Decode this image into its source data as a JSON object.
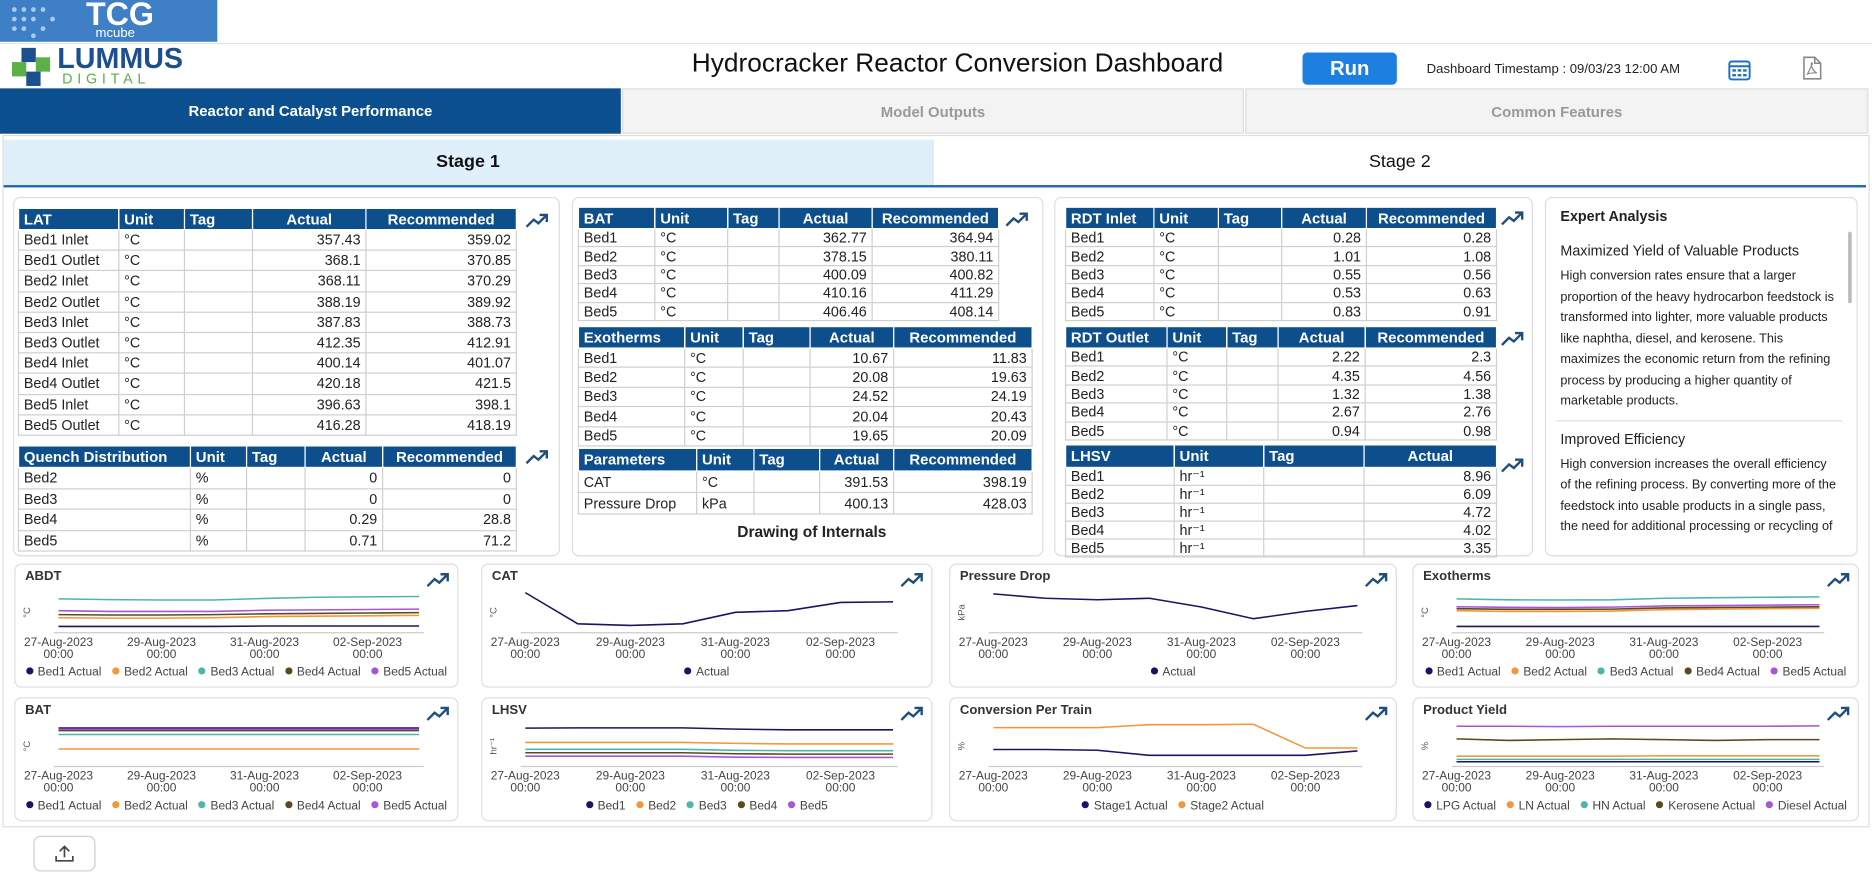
{
  "logos": {
    "tcg": "TCG",
    "tcg_sub": "mcube",
    "lummus": "LUMMUS",
    "lummus_sub": "DIGITAL"
  },
  "header": {
    "title": "Hydrocracker Reactor Conversion Dashboard",
    "run": "Run",
    "timestamp": "Dashboard Timestamp : 09/03/23 12:00 AM"
  },
  "tabs": [
    "Reactor and Catalyst Performance",
    "Model Outputs",
    "Common Features"
  ],
  "stage_tabs": [
    "Stage 1",
    "Stage 2"
  ],
  "tables": [
    {
      "columns": [
        "LAT",
        "Unit",
        "Tag",
        "Actual",
        "Recommended"
      ],
      "rows": [
        [
          "Bed1 Inlet",
          "°C",
          357.43,
          359.02
        ],
        [
          "Bed1 Outlet",
          "°C",
          368.1,
          370.85
        ],
        [
          "Bed2 Inlet",
          "°C",
          368.11,
          370.29
        ],
        [
          "Bed2 Outlet",
          "°C",
          388.19,
          389.92
        ],
        [
          "Bed3 Inlet",
          "°C",
          387.83,
          388.73
        ],
        [
          "Bed3 Outlet",
          "°C",
          412.35,
          412.91
        ],
        [
          "Bed4 Inlet",
          "°C",
          400.14,
          401.07
        ],
        [
          "Bed4 Outlet",
          "°C",
          420.18,
          421.5
        ],
        [
          "Bed5 Inlet",
          "°C",
          396.63,
          398.1
        ],
        [
          "Bed5 Outlet",
          "°C",
          416.28,
          418.19
        ]
      ]
    },
    {
      "columns": [
        "Quench Distribution",
        "Unit",
        "Tag",
        "Actual",
        "Recommended"
      ],
      "rows": [
        [
          "Bed2",
          "%",
          0,
          0
        ],
        [
          "Bed3",
          "%",
          0,
          0
        ],
        [
          "Bed4",
          "%",
          0.29,
          28.8
        ],
        [
          "Bed5",
          "%",
          0.71,
          71.2
        ]
      ]
    },
    {
      "columns": [
        "BAT",
        "Unit",
        "Tag",
        "Actual",
        "Recommended"
      ],
      "rows": [
        [
          "Bed1",
          "°C",
          362.77,
          364.94
        ],
        [
          "Bed2",
          "°C",
          378.15,
          380.11
        ],
        [
          "Bed3",
          "°C",
          400.09,
          400.82
        ],
        [
          "Bed4",
          "°C",
          410.16,
          411.29
        ],
        [
          "Bed5",
          "°C",
          406.46,
          408.14
        ]
      ]
    },
    {
      "columns": [
        "Exotherms",
        "Unit",
        "Tag",
        "Actual",
        "Recommended"
      ],
      "rows": [
        [
          "Bed1",
          "°C",
          10.67,
          11.83
        ],
        [
          "Bed2",
          "°C",
          20.08,
          19.63
        ],
        [
          "Bed3",
          "°C",
          24.52,
          24.19
        ],
        [
          "Bed4",
          "°C",
          20.04,
          20.43
        ],
        [
          "Bed5",
          "°C",
          19.65,
          20.09
        ]
      ]
    },
    {
      "columns": [
        "Parameters",
        "Unit",
        "Tag",
        "Actual",
        "Recommended"
      ],
      "rows": [
        [
          "CAT",
          "°C",
          391.53,
          398.19
        ],
        [
          "Pressure Drop",
          "kPa",
          400.13,
          428.03
        ]
      ]
    },
    {
      "columns": [
        "RDT Inlet",
        "Unit",
        "Tag",
        "Actual",
        "Recommended"
      ],
      "rows": [
        [
          "Bed1",
          "°C",
          0.28,
          0.28
        ],
        [
          "Bed2",
          "°C",
          1.01,
          1.08
        ],
        [
          "Bed3",
          "°C",
          0.55,
          0.56
        ],
        [
          "Bed4",
          "°C",
          0.53,
          0.63
        ],
        [
          "Bed5",
          "°C",
          0.83,
          0.91
        ]
      ]
    },
    {
      "columns": [
        "RDT Outlet",
        "Unit",
        "Tag",
        "Actual",
        "Recommended"
      ],
      "rows": [
        [
          "Bed1",
          "°C",
          2.22,
          2.3
        ],
        [
          "Bed2",
          "°C",
          4.35,
          4.56
        ],
        [
          "Bed3",
          "°C",
          1.32,
          1.38
        ],
        [
          "Bed4",
          "°C",
          2.67,
          2.76
        ],
        [
          "Bed5",
          "°C",
          0.94,
          0.98
        ]
      ]
    },
    {
      "columns": [
        "LHSV",
        "Unit",
        "Tag",
        "Actual"
      ],
      "rows": [
        [
          "Bed1",
          "hr⁻¹",
          8.96
        ],
        [
          "Bed2",
          "hr⁻¹",
          6.09
        ],
        [
          "Bed3",
          "hr⁻¹",
          4.72
        ],
        [
          "Bed4",
          "hr⁻¹",
          4.02
        ],
        [
          "Bed5",
          "hr⁻¹",
          3.35
        ]
      ]
    }
  ],
  "drawing_label": "Drawing of Internals",
  "expert_analysis": {
    "title": "Expert Analysis",
    "sections": [
      {
        "heading": "Maximized Yield of Valuable Products",
        "text": "High conversion rates ensure that a larger proportion of the heavy hydrocarbon feedstock is transformed into lighter, more valuable products like naphtha, diesel, and kerosene. This maximizes the economic return from the refining process by producing a higher quantity of marketable products."
      },
      {
        "heading": "Improved Efficiency",
        "text": "High conversion increases the overall efficiency of the refining process. By converting more of the feedstock into usable products in a single pass, the need for additional processing or recycling of"
      }
    ]
  },
  "chart_data": [
    {
      "type": "line",
      "title": "ABDT",
      "y_label": "°C",
      "categories": [
        "27-Aug-2023 00:00",
        null,
        "29-Aug-2023 00:00",
        null,
        "31-Aug-2023 00:00",
        null,
        "02-Sep-2023 00:00",
        null
      ],
      "ylim": [
        340,
        440
      ],
      "series": [
        {
          "name": "Bed1 Actual",
          "color": "#1b1464",
          "values": [
            350,
            350,
            350,
            350,
            351,
            351,
            351,
            351
          ]
        },
        {
          "name": "Bed2 Actual",
          "color": "#f5963a",
          "values": [
            372,
            371,
            371,
            372,
            375,
            376,
            377,
            378
          ]
        },
        {
          "name": "Bed3 Actual",
          "color": "#4db6ac",
          "values": [
            420,
            418,
            417,
            417,
            421,
            424,
            425,
            426
          ]
        },
        {
          "name": "Bed4 Actual",
          "color": "#5a4a1e",
          "values": [
            380,
            379,
            379,
            380,
            382,
            383,
            384,
            385
          ]
        },
        {
          "name": "Bed5 Actual",
          "color": "#a855d6",
          "values": [
            390,
            388,
            388,
            388,
            391,
            392,
            393,
            394
          ]
        }
      ]
    },
    {
      "type": "line",
      "title": "CAT",
      "y_label": "°C",
      "categories": [
        "27-Aug-2023 00:00",
        null,
        "29-Aug-2023 00:00",
        null,
        "31-Aug-2023 00:00",
        null,
        "02-Sep-2023 00:00",
        null
      ],
      "ylim": [
        387,
        399
      ],
      "series": [
        {
          "name": "Actual",
          "color": "#1b1464",
          "values": [
            398.5,
            389,
            388.5,
            389,
            392.5,
            393,
            395.5,
            395.7
          ]
        }
      ]
    },
    {
      "type": "line",
      "title": "Pressure Drop",
      "y_label": "kPa",
      "categories": [
        "27-Aug-2023 00:00",
        null,
        "29-Aug-2023 00:00",
        null,
        "31-Aug-2023 00:00",
        null,
        "02-Sep-2023 00:00",
        null
      ],
      "ylim": [
        405,
        432
      ],
      "series": [
        {
          "name": "Actual",
          "color": "#1b1464",
          "values": [
            430,
            427,
            426,
            427,
            421,
            413,
            418,
            422
          ]
        }
      ]
    },
    {
      "type": "line",
      "title": "Exotherms",
      "y_label": "°C",
      "categories": [
        "27-Aug-2023 00:00",
        null,
        "29-Aug-2023 00:00",
        null,
        "31-Aug-2023 00:00",
        null,
        "02-Sep-2023 00:00",
        null
      ],
      "ylim": [
        8,
        28
      ],
      "series": [
        {
          "name": "Bed1 Actual",
          "color": "#1b1464",
          "values": [
            10,
            10,
            10,
            10,
            10,
            10,
            10,
            10
          ]
        },
        {
          "name": "Bed2 Actual",
          "color": "#f5963a",
          "values": [
            18,
            17.6,
            17.6,
            17.8,
            18.5,
            18.8,
            19,
            19.2
          ]
        },
        {
          "name": "Bed3 Actual",
          "color": "#4db6ac",
          "values": [
            24,
            23.5,
            23.4,
            23.5,
            24.3,
            24.6,
            24.8,
            25
          ]
        },
        {
          "name": "Bed4 Actual",
          "color": "#5a4a1e",
          "values": [
            19,
            18.7,
            18.7,
            18.8,
            19.4,
            19.6,
            19.8,
            20
          ]
        },
        {
          "name": "Bed5 Actual",
          "color": "#a855d6",
          "values": [
            20,
            19.7,
            19.6,
            19.8,
            20.4,
            20.6,
            20.8,
            21
          ]
        }
      ]
    },
    {
      "type": "line",
      "title": "BAT",
      "y_label": "°C",
      "categories": [
        "27-Aug-2023 00:00",
        null,
        "29-Aug-2023 00:00",
        null,
        "31-Aug-2023 00:00",
        null,
        "02-Sep-2023 00:00",
        null
      ],
      "ylim": [
        355,
        415
      ],
      "series": [
        {
          "name": "Bed1 Actual",
          "color": "#1b1464",
          "values": [
            410,
            410,
            410,
            410,
            410,
            410,
            410,
            410
          ]
        },
        {
          "name": "Bed2 Actual",
          "color": "#f5963a",
          "values": [
            378,
            378,
            378,
            378,
            378,
            378,
            378,
            378
          ]
        },
        {
          "name": "Bed3 Actual",
          "color": "#4db6ac",
          "values": [
            400,
            400,
            400,
            400,
            400,
            400,
            400,
            400
          ]
        },
        {
          "name": "Bed4 Actual",
          "color": "#5a4a1e",
          "values": [
            406,
            406,
            406,
            406,
            406,
            406,
            406,
            406
          ]
        },
        {
          "name": "Bed5 Actual",
          "color": "#a855d6",
          "values": [
            408,
            408,
            408,
            408,
            408,
            408,
            408,
            408
          ]
        }
      ]
    },
    {
      "type": "line",
      "title": "LHSV",
      "y_label": "hr⁻¹",
      "categories": [
        "27-Aug-2023 00:00",
        null,
        "29-Aug-2023 00:00",
        null,
        "31-Aug-2023 00:00",
        null,
        "02-Sep-2023 00:00",
        null
      ],
      "ylim": [
        2,
        10
      ],
      "series": [
        {
          "name": "Bed1",
          "color": "#1b1464",
          "values": [
            9.3,
            9.35,
            9.35,
            9.35,
            9.1,
            8.96,
            8.96,
            8.96
          ]
        },
        {
          "name": "Bed2",
          "color": "#f5963a",
          "values": [
            6.4,
            6.4,
            6.4,
            6.4,
            6.2,
            6.09,
            6.09,
            6.09
          ]
        },
        {
          "name": "Bed3",
          "color": "#4db6ac",
          "values": [
            5,
            5,
            5,
            5,
            4.8,
            4.72,
            4.72,
            4.72
          ]
        },
        {
          "name": "Bed4",
          "color": "#5a4a1e",
          "values": [
            4.3,
            4.3,
            4.3,
            4.3,
            4.1,
            4.02,
            4.02,
            4.02
          ]
        },
        {
          "name": "Bed5",
          "color": "#a855d6",
          "values": [
            3.6,
            3.6,
            3.6,
            3.6,
            3.4,
            3.35,
            3.35,
            3.35
          ]
        }
      ]
    },
    {
      "type": "line",
      "title": "Conversion Per Train",
      "y_label": "%",
      "categories": [
        "27-Aug-2023 00:00",
        null,
        "29-Aug-2023 00:00",
        null,
        "31-Aug-2023 00:00",
        null,
        "02-Sep-2023 00:00",
        null
      ],
      "ylim": [
        65,
        92
      ],
      "series": [
        {
          "name": "Stage1 Actual",
          "color": "#1b1464",
          "values": [
            75,
            75,
            74.5,
            71,
            71,
            71,
            71,
            74
          ]
        },
        {
          "name": "Stage2 Actual",
          "color": "#f5963a",
          "values": [
            90,
            90,
            90,
            92,
            92,
            92.3,
            76,
            76
          ]
        }
      ]
    },
    {
      "type": "line",
      "title": "Product Yield",
      "y_label": "%",
      "categories": [
        "27-Aug-2023 00:00",
        null,
        "29-Aug-2023 00:00",
        null,
        "31-Aug-2023 00:00",
        null,
        "02-Sep-2023 00:00",
        null
      ],
      "ylim": [
        0,
        50
      ],
      "series": [
        {
          "name": "LPG Actual",
          "color": "#1b1464",
          "values": [
            3,
            3,
            3,
            3,
            3,
            3,
            3,
            3
          ]
        },
        {
          "name": "LN Actual",
          "color": "#f5963a",
          "values": [
            10,
            10,
            10,
            10,
            10.5,
            10.5,
            10.5,
            10.5
          ]
        },
        {
          "name": "HN Actual",
          "color": "#4db6ac",
          "values": [
            6,
            6,
            6,
            6,
            6,
            6,
            6,
            6
          ]
        },
        {
          "name": "Kerosene Actual",
          "color": "#5a4a1e",
          "values": [
            32,
            30,
            31,
            32,
            31,
            30,
            31,
            31
          ]
        },
        {
          "name": "Diesel Actual",
          "color": "#a855d6",
          "values": [
            48,
            48,
            47.5,
            48,
            48,
            48,
            48,
            48.5
          ]
        }
      ]
    }
  ]
}
